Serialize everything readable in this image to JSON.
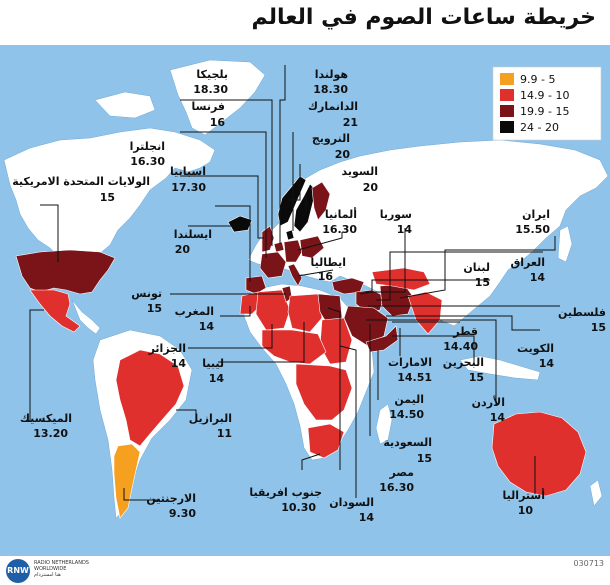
{
  "title": "خريطة ساعات الصوم في العالم",
  "legend": [
    {
      "range": "9.9 - 5",
      "color": "#f5a01e"
    },
    {
      "range": "14.9 - 10",
      "color": "#e0302e"
    },
    {
      "range": "19.9 - 15",
      "color": "#7a1418"
    },
    {
      "range": "24 - 20",
      "color": "#0a0a0a"
    }
  ],
  "colors": {
    "ocean": "#8fc3ea",
    "land": "#ffffff",
    "low": "#f5a01e",
    "mid": "#e0302e",
    "high": "#7a1418",
    "top": "#0a0a0a"
  },
  "countries": [
    {
      "name": "بلجيكا",
      "hours": "18.30"
    },
    {
      "name": "هولندا",
      "hours": "18.30"
    },
    {
      "name": "فرنسا",
      "hours": "16"
    },
    {
      "name": "الدانمارك",
      "hours": "21"
    },
    {
      "name": "انجلترا",
      "hours": "16.30"
    },
    {
      "name": "النرويج",
      "hours": "20"
    },
    {
      "name": "اسبانيا",
      "hours": "17.30"
    },
    {
      "name": "السويد",
      "hours": "20"
    },
    {
      "name": "الولايات المتحدة الامريكية",
      "hours": "15"
    },
    {
      "name": "ايسلندا",
      "hours": "20"
    },
    {
      "name": "ألمانيا",
      "hours": "16.30"
    },
    {
      "name": "سوريا",
      "hours": "14"
    },
    {
      "name": "ايران",
      "hours": "15.50"
    },
    {
      "name": "ايطاليا",
      "hours": "16"
    },
    {
      "name": "العراق",
      "hours": "14"
    },
    {
      "name": "لبنان",
      "hours": "15"
    },
    {
      "name": "تونس",
      "hours": "15"
    },
    {
      "name": "المغرب",
      "hours": "14"
    },
    {
      "name": "فلسطين",
      "hours": "15"
    },
    {
      "name": "الجزائر",
      "hours": "14"
    },
    {
      "name": "ليبيا",
      "hours": "14"
    },
    {
      "name": "قطر",
      "hours": "14.40"
    },
    {
      "name": "الكويت",
      "hours": "14"
    },
    {
      "name": "الامارات",
      "hours": "14.51"
    },
    {
      "name": "البحرين",
      "hours": "15"
    },
    {
      "name": "اليمن",
      "hours": "14.50"
    },
    {
      "name": "الأردن",
      "hours": "14"
    },
    {
      "name": "الميكسيك",
      "hours": "13.20"
    },
    {
      "name": "البرازيل",
      "hours": "11"
    },
    {
      "name": "السعودية",
      "hours": "15"
    },
    {
      "name": "مصر",
      "hours": "16.30"
    },
    {
      "name": "جنوب افريقيا",
      "hours": "10.30"
    },
    {
      "name": "أستراليا",
      "hours": "10"
    },
    {
      "name": "الارجنتين",
      "hours": "9.30"
    },
    {
      "name": "السودان",
      "hours": "14"
    }
  ],
  "footer": {
    "logo_text": "RNW",
    "org_text": "RADIO NETHERLANDS\nWORLDWIDE\nهنا امستردام",
    "code": "030713"
  }
}
